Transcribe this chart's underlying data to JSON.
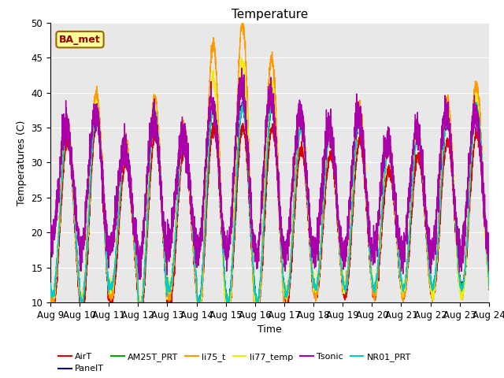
{
  "title": "Temperature",
  "ylabel": "Temperatures (C)",
  "xlabel": "Time",
  "ylim": [
    10,
    50
  ],
  "yticks": [
    10,
    15,
    20,
    25,
    30,
    35,
    40,
    45,
    50
  ],
  "xtick_labels": [
    "Aug 9",
    "Aug 10",
    "Aug 11",
    "Aug 12",
    "Aug 13",
    "Aug 14",
    "Aug 15",
    "Aug 16",
    "Aug 17",
    "Aug 18",
    "Aug 19",
    "Aug 20",
    "Aug 21",
    "Aug 22",
    "Aug 23",
    "Aug 24"
  ],
  "legend_entries": [
    "AirT",
    "PanelT",
    "AM25T_PRT",
    "li75_t",
    "li77_temp",
    "Tsonic",
    "NR01_PRT"
  ],
  "legend_colors": [
    "#dd0000",
    "#000099",
    "#00aa00",
    "#ff9900",
    "#eeee00",
    "#aa00aa",
    "#00cccc"
  ],
  "annotation_text": "BA_met",
  "annotation_bg": "#ffff99",
  "annotation_border": "#996600",
  "annotation_text_color": "#990000",
  "background_color": "#e8e8e8",
  "grid_color": "#ffffff"
}
